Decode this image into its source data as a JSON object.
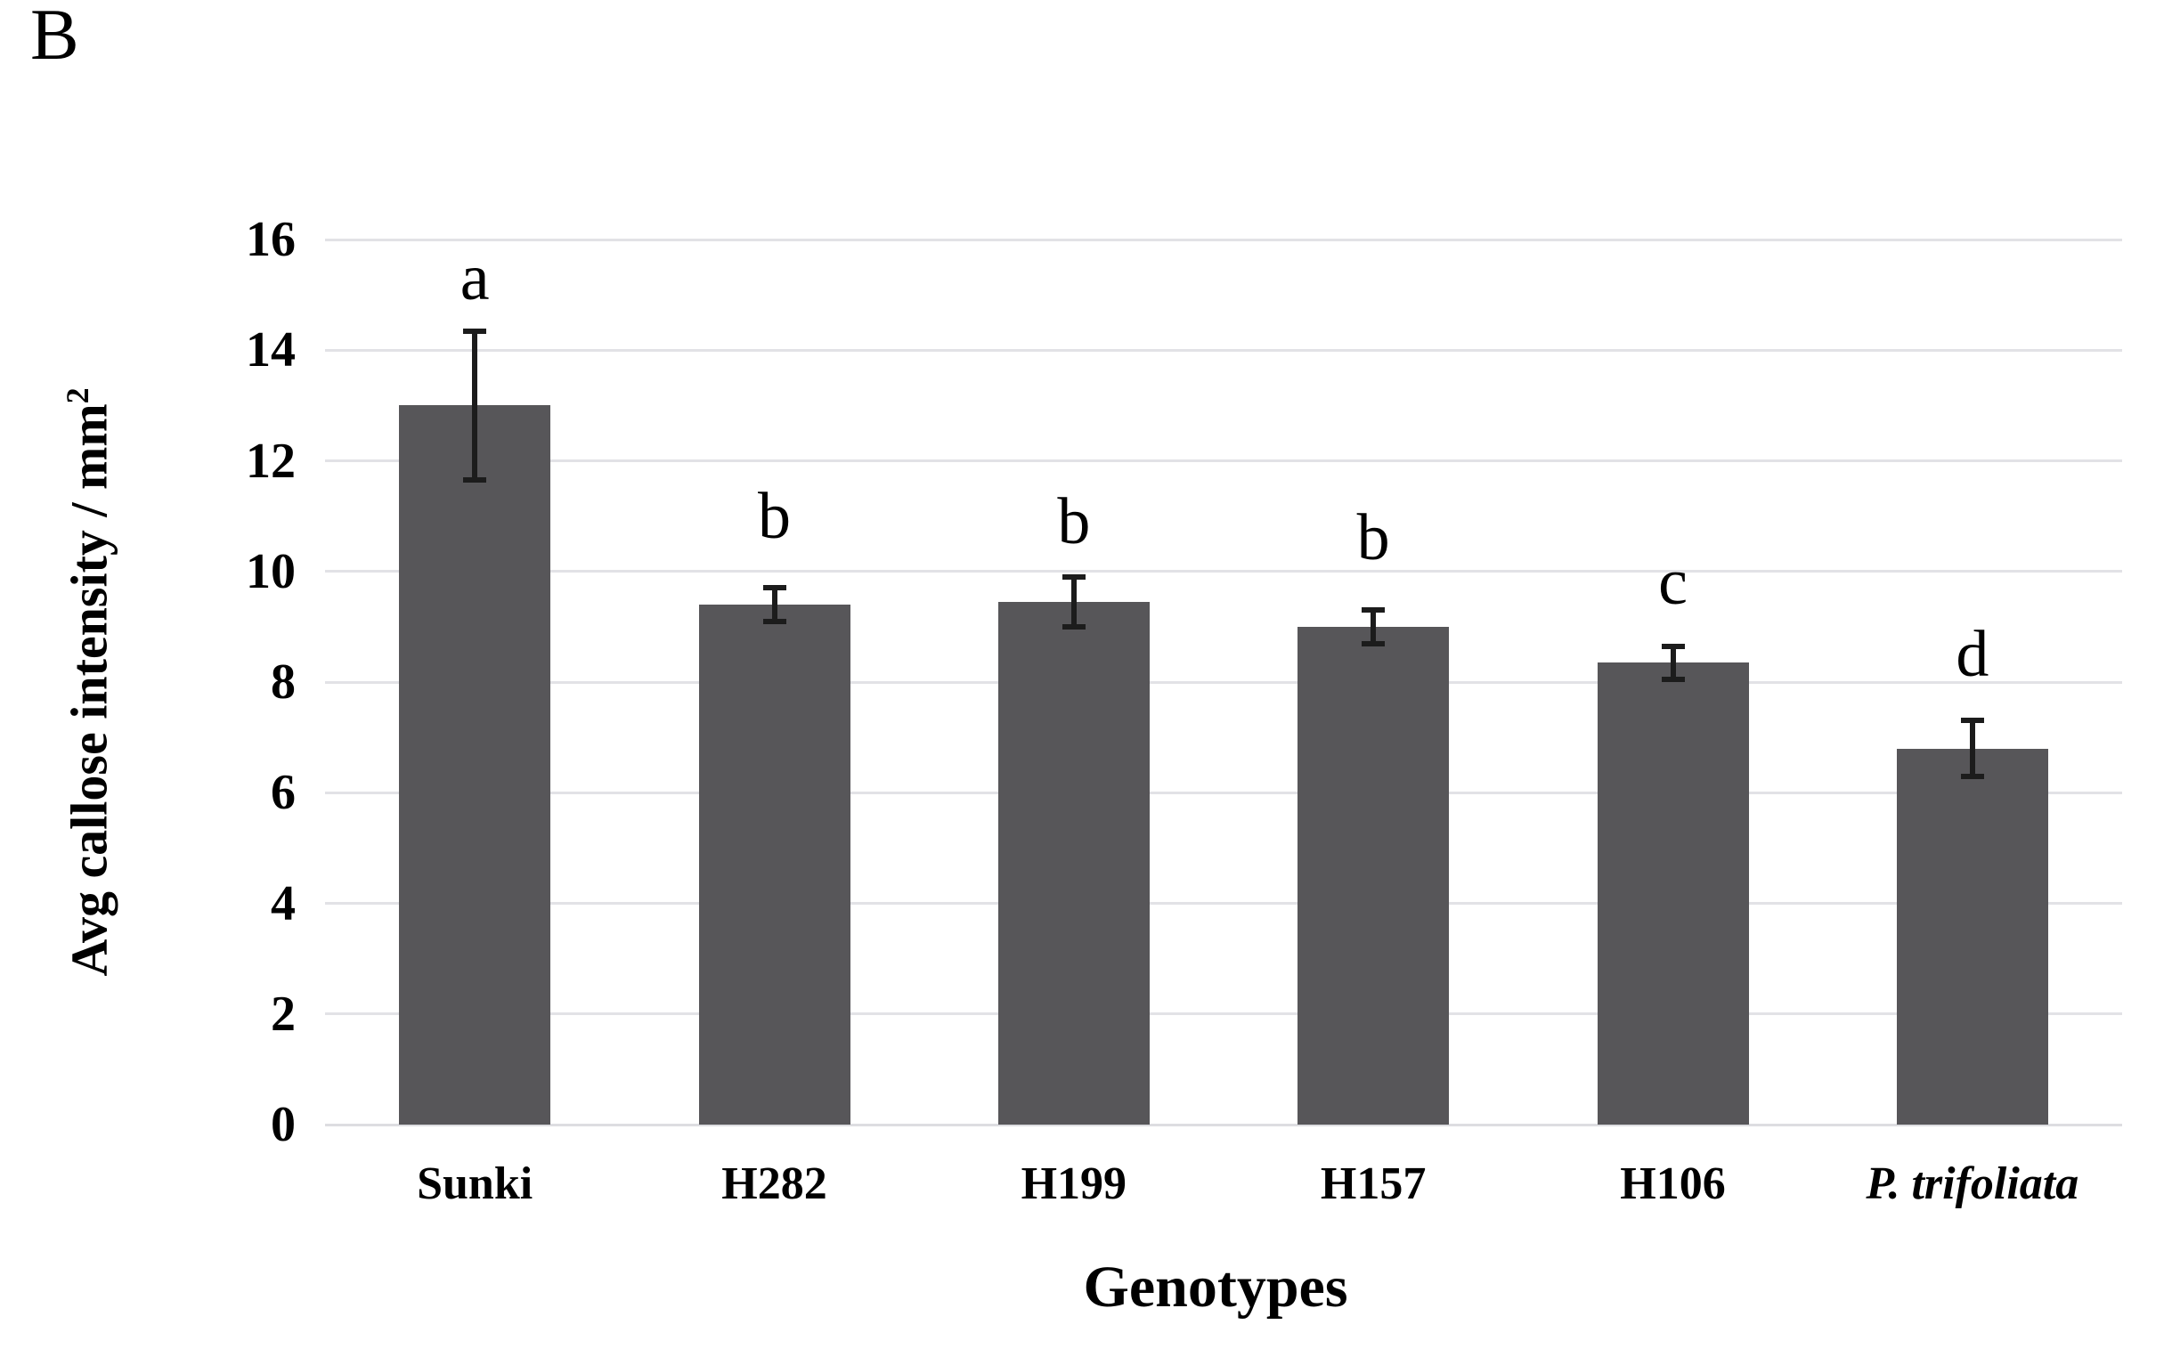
{
  "panel_label": "B",
  "chart_data": {
    "type": "bar",
    "title": "",
    "xlabel": "Genotypes",
    "ylabel_prefix": "Avg callose intensity / mm",
    "ylabel_exponent": "2",
    "ylabel": "Avg callose intensity / mm²",
    "categories": [
      "Sunki",
      "H282",
      "H199",
      "H157",
      "H106",
      "P. trifoliata"
    ],
    "italic_categories": [
      false,
      false,
      false,
      false,
      false,
      true
    ],
    "values": [
      13.0,
      9.4,
      9.45,
      9.0,
      8.35,
      6.8
    ],
    "errors": [
      1.35,
      0.3,
      0.45,
      0.3,
      0.3,
      0.5
    ],
    "sig_letters": [
      "a",
      "b",
      "b",
      "b",
      "c",
      "d"
    ],
    "sig_letter_y": [
      15.3,
      11.0,
      10.9,
      10.6,
      9.8,
      8.5
    ],
    "ylim": [
      0,
      16
    ],
    "yticks": [
      0,
      2,
      4,
      6,
      8,
      10,
      12,
      14,
      16
    ],
    "grid": true,
    "legend": "none",
    "colors": {
      "bar": "#575659",
      "gridline": "#e2e2e6",
      "baseline": "#dddde1",
      "error_bar": "#1c1c1c",
      "text": "#000000",
      "background": "#ffffff"
    }
  }
}
